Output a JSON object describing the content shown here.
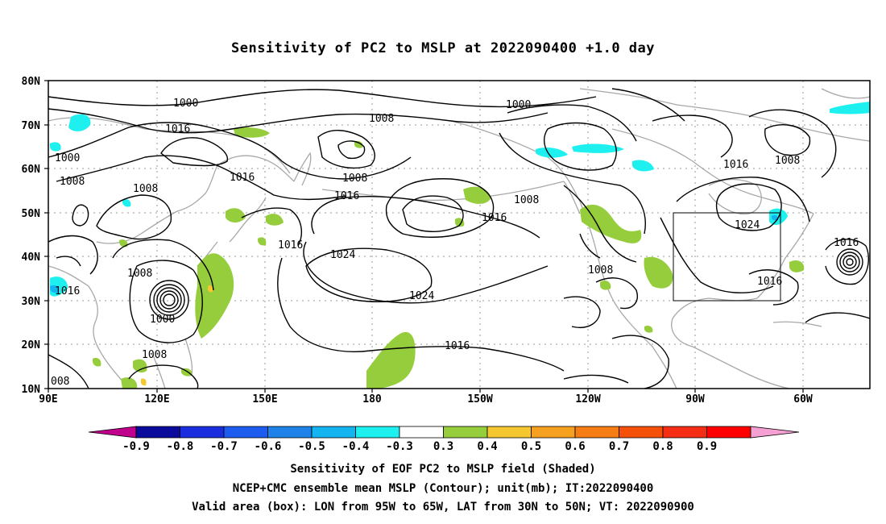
{
  "title": "Sensitivity of PC2 to MSLP at 2022090400 +1.0 day",
  "map": {
    "lat_labels": [
      "80N",
      "70N",
      "60N",
      "50N",
      "40N",
      "30N",
      "20N",
      "10N"
    ],
    "lon_labels": [
      "90E",
      "120E",
      "150E",
      "180",
      "150W",
      "120W",
      "90W",
      "60W"
    ],
    "contour_labels": [
      {
        "text": "1000"
      },
      {
        "text": "1016"
      },
      {
        "text": "1000"
      },
      {
        "text": "1008"
      },
      {
        "text": "1008"
      },
      {
        "text": "1016"
      },
      {
        "text": "1008"
      },
      {
        "text": "1016"
      },
      {
        "text": "1016"
      },
      {
        "text": "1024"
      },
      {
        "text": "1008"
      },
      {
        "text": "1016"
      },
      {
        "text": "1000"
      },
      {
        "text": "1008"
      },
      {
        "text": "1024"
      },
      {
        "text": "1016"
      },
      {
        "text": "1000"
      },
      {
        "text": "1008"
      },
      {
        "text": "1008"
      },
      {
        "text": "1016"
      },
      {
        "text": "1008"
      },
      {
        "text": "1016"
      },
      {
        "text": "1024"
      },
      {
        "text": "1016"
      },
      {
        "text": "1016"
      },
      {
        "text": "1008"
      },
      {
        "text": "008"
      }
    ],
    "valid_box": {
      "lon_from": "95W",
      "lon_to": "65W",
      "lat_from": "30N",
      "lat_to": "50N"
    }
  },
  "colorbar": {
    "colors": [
      "#c0008c",
      "#0a0a9c",
      "#1a2ee0",
      "#1e5cf0",
      "#1e82e8",
      "#14b4f0",
      "#1ef0f0",
      "#ffffff",
      "#96cd3c",
      "#f5c832",
      "#f5a01e",
      "#f57d14",
      "#f5500a",
      "#f52d14",
      "#ff0000",
      "#f5a0d2"
    ],
    "labels": [
      "-0.9",
      "-0.8",
      "-0.7",
      "-0.6",
      "-0.5",
      "-0.4",
      "-0.3",
      "0.3",
      "0.4",
      "0.5",
      "0.6",
      "0.7",
      "0.8",
      "0.9"
    ]
  },
  "captions": [
    "Sensitivity of EOF PC2 to MSLP field (Shaded)",
    "NCEP+CMC ensemble mean MSLP (Contour); unit(mb); IT:2022090400",
    "Valid area (box): LON from 95W to 65W, LAT from 30N to 50N; VT: 2022090900"
  ]
}
